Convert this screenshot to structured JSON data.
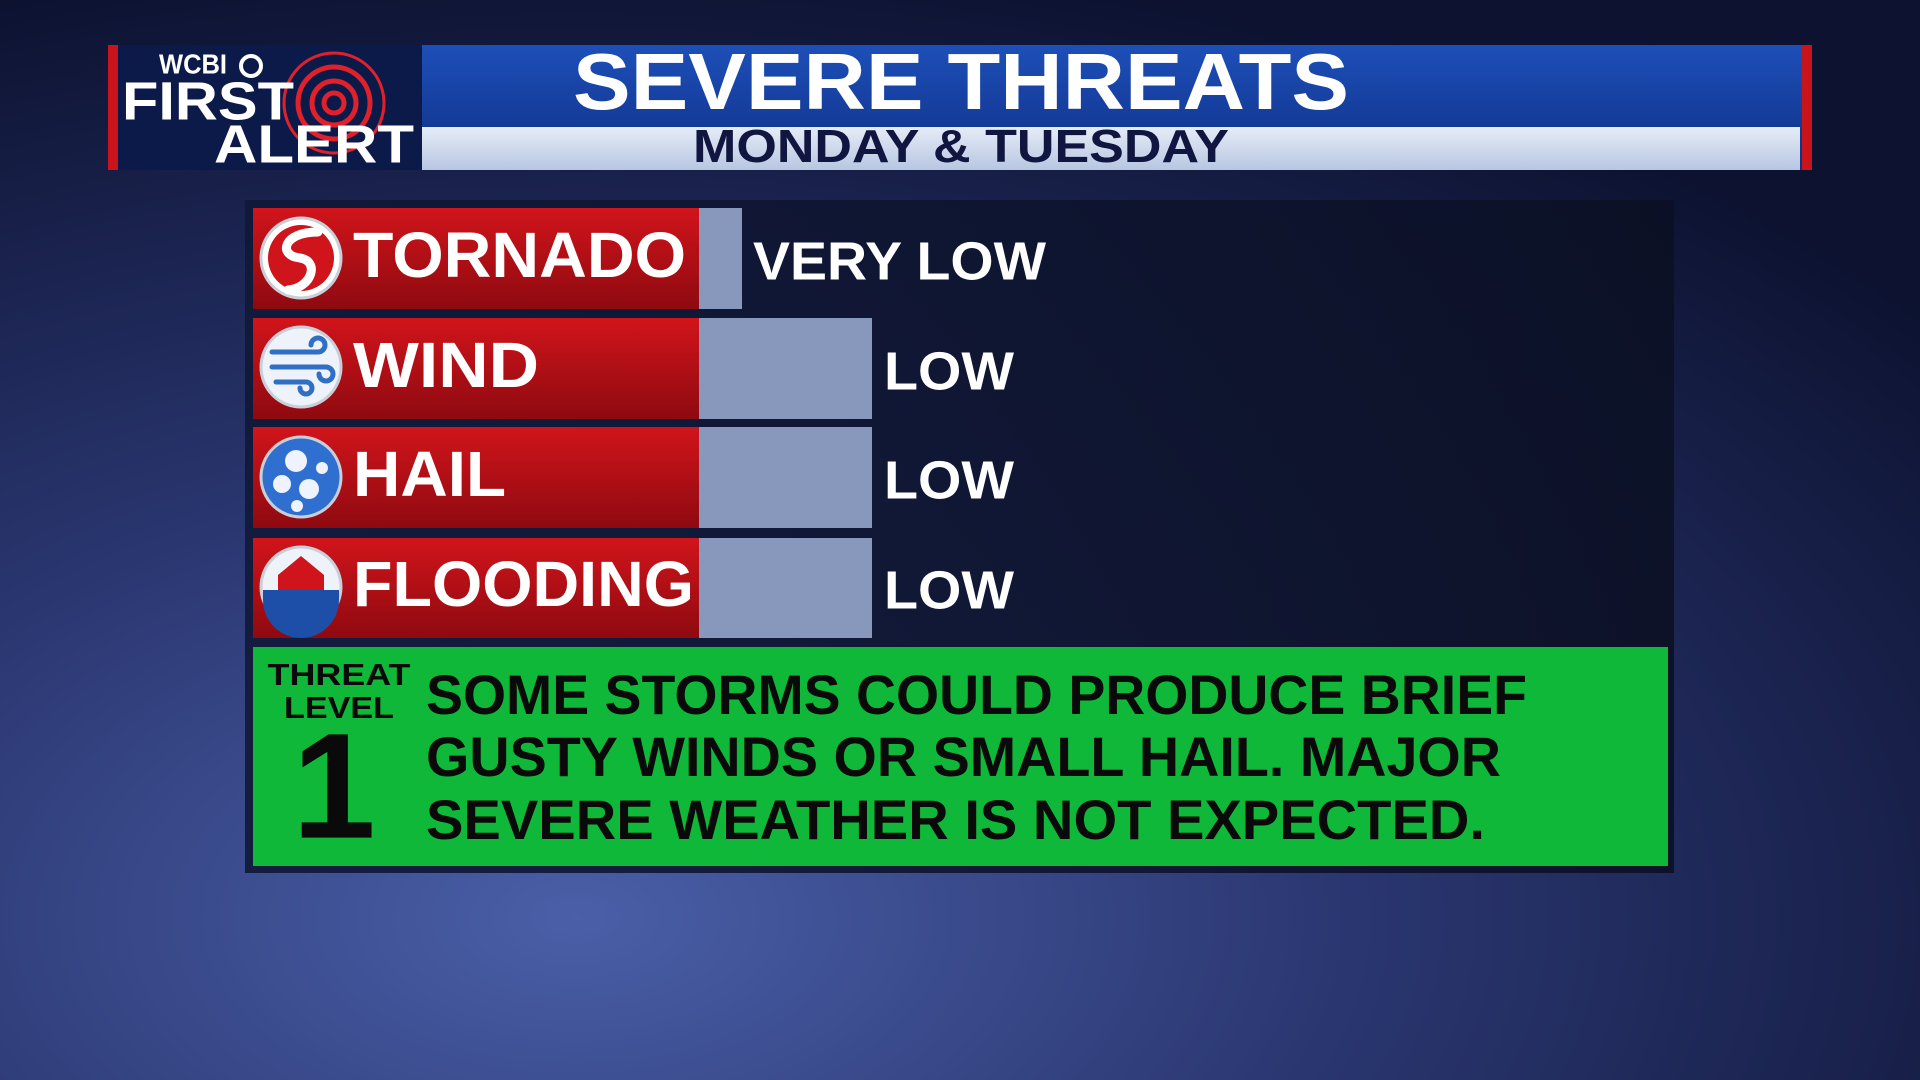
{
  "header": {
    "logo": {
      "station": "WCBI",
      "line1": "FIRST",
      "line2": "ALERT"
    },
    "title": "SEVERE THREATS",
    "subtitle": "MONDAY & TUESDAY"
  },
  "threats": [
    {
      "name": "TORNADO",
      "level": "VERY LOW"
    },
    {
      "name": "WIND",
      "level": "LOW"
    },
    {
      "name": "HAIL",
      "level": "LOW"
    },
    {
      "name": "FLOODING",
      "level": "LOW"
    }
  ],
  "summary": {
    "label_line1": "THREAT",
    "label_line2": "LEVEL",
    "level": 1,
    "lines": [
      "SOME STORMS COULD PRODUCE BRIEF",
      "GUSTY WINDS OR SMALL HAIL. MAJOR",
      "SEVERE WEATHER IS NOT EXPECTED."
    ]
  }
}
